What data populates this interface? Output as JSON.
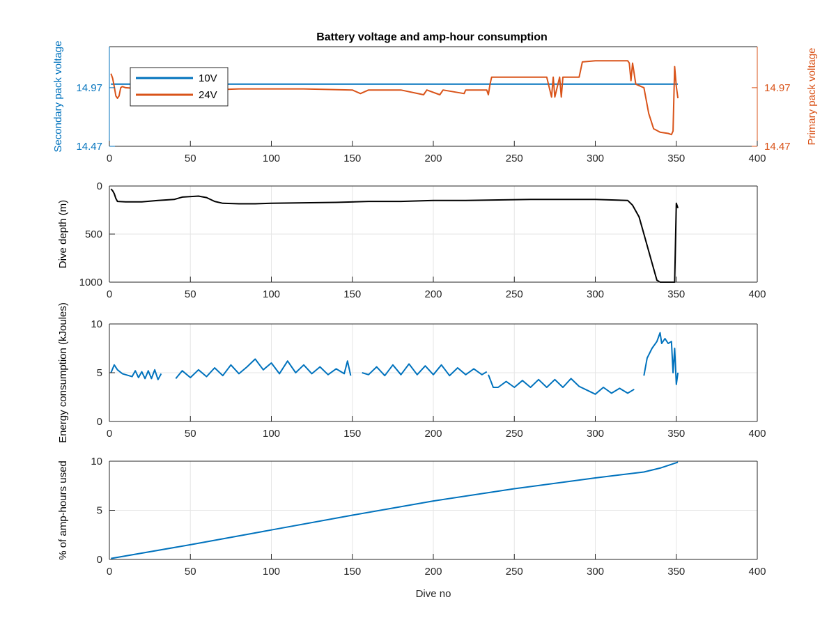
{
  "figure_title": "Battery voltage and amp-hour consumption",
  "colors": {
    "blue": "#0072BD",
    "orange": "#D95319",
    "black": "#000000",
    "grid": "#e6e6e6",
    "axis": "#262626"
  },
  "chart_data": [
    {
      "type": "line",
      "title": "Battery voltage and amp-hour consumption",
      "xlabel": "",
      "ylabel": "Secondary pack voltage",
      "ylabel_right": "Primary pack voltage",
      "xlim": [
        0,
        400
      ],
      "ylim": [
        14.47,
        15.32
      ],
      "x_ticks": [
        0,
        50,
        100,
        150,
        200,
        250,
        300,
        350,
        400
      ],
      "y_ticks": [
        "14.47",
        "14.97"
      ],
      "y_ticks_right": [
        "14.47",
        "14.97"
      ],
      "grid": false,
      "legend_position": "top-left",
      "series": [
        {
          "name": "10V",
          "color": "#0072BD",
          "axis": "left",
          "x": [
            1,
            351
          ],
          "values": [
            15.0,
            15.0
          ]
        },
        {
          "name": "24V",
          "color": "#D95319",
          "axis": "right",
          "x": [
            1,
            2,
            3,
            4,
            5,
            6,
            7,
            8,
            10,
            20,
            40,
            60,
            80,
            100,
            120,
            150,
            155,
            160,
            180,
            194,
            196,
            204,
            206,
            219,
            220,
            230,
            233,
            234,
            235,
            236,
            240,
            260,
            270,
            273,
            274,
            275,
            278,
            279,
            280,
            290,
            292,
            300,
            320,
            321,
            322,
            323,
            325,
            330,
            333,
            336,
            340,
            345,
            347,
            348,
            349,
            350,
            351
          ],
          "values": [
            15.09,
            15.05,
            14.98,
            14.9,
            14.88,
            14.9,
            14.97,
            14.98,
            14.97,
            14.96,
            14.95,
            14.95,
            14.96,
            14.96,
            14.96,
            14.95,
            14.92,
            14.95,
            14.95,
            14.91,
            14.95,
            14.91,
            14.95,
            14.92,
            14.95,
            14.95,
            14.95,
            14.91,
            15.0,
            15.06,
            15.06,
            15.06,
            15.06,
            14.89,
            15.06,
            14.89,
            15.06,
            14.89,
            15.06,
            15.06,
            15.19,
            15.2,
            15.2,
            15.18,
            15.03,
            15.18,
            15.0,
            14.97,
            14.75,
            14.62,
            14.59,
            14.58,
            14.57,
            14.6,
            15.15,
            14.98,
            14.88
          ]
        }
      ]
    },
    {
      "type": "line",
      "xlabel": "",
      "ylabel": "Dive depth (m)",
      "xlim": [
        0,
        400
      ],
      "ylim": [
        0,
        1000
      ],
      "y_reversed": true,
      "x_ticks": [
        0,
        50,
        100,
        150,
        200,
        250,
        300,
        350,
        400
      ],
      "y_ticks": [
        0,
        500,
        1000
      ],
      "grid": true,
      "series": [
        {
          "color": "#000000",
          "x": [
            1,
            2,
            3,
            4,
            5,
            10,
            20,
            30,
            40,
            45,
            55,
            60,
            65,
            70,
            80,
            90,
            100,
            120,
            140,
            160,
            180,
            200,
            220,
            240,
            260,
            280,
            300,
            320,
            323,
            327,
            330,
            335,
            338,
            340,
            345,
            348,
            349,
            350,
            351
          ],
          "values": [
            30,
            50,
            80,
            130,
            160,
            165,
            165,
            150,
            140,
            115,
            105,
            120,
            160,
            180,
            185,
            185,
            180,
            175,
            170,
            160,
            160,
            150,
            150,
            145,
            140,
            140,
            140,
            150,
            200,
            320,
            500,
            800,
            980,
            1000,
            1000,
            1000,
            1000,
            180,
            230
          ]
        }
      ]
    },
    {
      "type": "line",
      "xlabel": "",
      "ylabel": "Energy consumption (kJoules)",
      "xlim": [
        0,
        400
      ],
      "ylim": [
        0,
        10
      ],
      "x_ticks": [
        0,
        50,
        100,
        150,
        200,
        250,
        300,
        350,
        400
      ],
      "y_ticks": [
        0,
        5,
        10
      ],
      "grid": true,
      "series": [
        {
          "color": "#0072BD",
          "segments": [
            {
              "x": [
                1,
                3,
                5,
                8,
                10,
                14,
                16,
                18,
                20,
                22,
                24,
                26,
                28,
                30,
                32
              ],
              "values": [
                5.0,
                5.8,
                5.3,
                4.9,
                4.8,
                4.6,
                5.2,
                4.5,
                5.1,
                4.4,
                5.2,
                4.4,
                5.3,
                4.3,
                4.9
              ]
            },
            {
              "x": [
                41,
                45,
                50,
                55,
                60,
                65,
                70,
                75,
                80,
                85,
                90,
                95,
                100,
                105,
                110,
                115,
                120,
                125,
                130,
                135,
                140,
                145,
                147,
                149
              ],
              "values": [
                4.4,
                5.2,
                4.5,
                5.3,
                4.6,
                5.5,
                4.7,
                5.8,
                4.9,
                5.6,
                6.4,
                5.3,
                6.0,
                4.9,
                6.2,
                5.0,
                5.8,
                4.9,
                5.6,
                4.8,
                5.4,
                4.9,
                6.2,
                4.7
              ]
            },
            {
              "x": [
                156,
                160,
                165,
                170,
                175,
                180,
                185,
                190,
                195,
                200,
                205,
                210,
                215,
                220,
                225,
                230,
                233
              ],
              "values": [
                5.0,
                4.8,
                5.6,
                4.7,
                5.8,
                4.8,
                5.9,
                4.8,
                5.7,
                4.8,
                5.8,
                4.7,
                5.5,
                4.8,
                5.4,
                4.8,
                5.1
              ]
            },
            {
              "x": [
                234,
                237,
                240,
                245,
                250,
                255,
                260,
                265,
                270,
                275,
                280,
                285,
                290,
                295,
                300,
                305,
                310,
                315,
                320,
                324
              ],
              "values": [
                4.8,
                3.5,
                3.5,
                4.1,
                3.5,
                4.2,
                3.5,
                4.3,
                3.5,
                4.3,
                3.5,
                4.4,
                3.6,
                3.2,
                2.8,
                3.5,
                2.9,
                3.4,
                2.9,
                3.3
              ]
            },
            {
              "x": [
                330,
                332,
                335,
                338,
                340,
                341,
                343,
                345,
                347,
                348,
                349,
                350,
                351
              ],
              "values": [
                4.7,
                6.5,
                7.5,
                8.2,
                9.1,
                8.0,
                8.5,
                8.0,
                8.2,
                5.0,
                7.5,
                3.8,
                5.0
              ]
            }
          ]
        }
      ]
    },
    {
      "type": "line",
      "xlabel": "Dive no",
      "ylabel": "% of amp-hours used",
      "xlim": [
        0,
        400
      ],
      "ylim": [
        0,
        10
      ],
      "x_ticks": [
        0,
        50,
        100,
        150,
        200,
        250,
        300,
        350,
        400
      ],
      "y_ticks": [
        0,
        5,
        10
      ],
      "grid": true,
      "series": [
        {
          "color": "#0072BD",
          "x": [
            1,
            50,
            100,
            150,
            200,
            250,
            300,
            330,
            340,
            351
          ],
          "values": [
            0.1,
            1.5,
            3.0,
            4.5,
            5.95,
            7.2,
            8.3,
            8.9,
            9.3,
            9.9
          ]
        }
      ]
    }
  ]
}
